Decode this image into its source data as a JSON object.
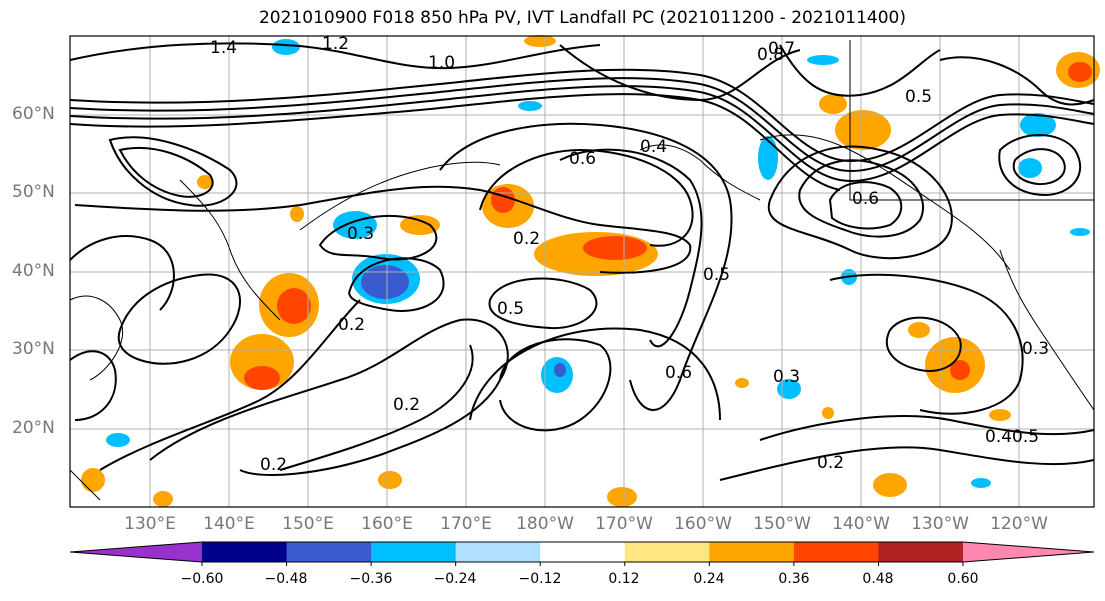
{
  "title": "2021010900 F018 850 hPa PV, IVT Landfall PC (2021011200 - 2021011400)",
  "lat_labels": [
    "60°N",
    "50°N",
    "40°N",
    "30°N",
    "20°N"
  ],
  "lon_labels": [
    "130°E",
    "140°E",
    "150°E",
    "160°E",
    "170°E",
    "180°W",
    "170°W",
    "160°W",
    "150°W",
    "140°W",
    "130°W",
    "120°W"
  ],
  "colorbar": {
    "colors": [
      "#9932cc",
      "#00008b",
      "#3a5bd0",
      "#00bfff",
      "#b0e0ff",
      "#ffffff",
      "#ffe680",
      "#ffa500",
      "#ff4500",
      "#b22222",
      "#ff88b0"
    ],
    "ticks": [
      "−0.60",
      "−0.48",
      "−0.36",
      "−0.24",
      "−0.12",
      "0.12",
      "0.24",
      "0.36",
      "0.48",
      "0.60"
    ]
  },
  "contour_labels": [
    "1.4",
    "1.2",
    "1.0",
    "0.8",
    "0.7",
    "0.6",
    "0.5",
    "0.4",
    "0.3",
    "0.2",
    "0.2",
    "0.2",
    "0.3",
    "0.5",
    "0.5",
    "0.6",
    "0.6",
    "0.4",
    "0.5",
    "0.2",
    "0.2",
    "0.3"
  ]
}
